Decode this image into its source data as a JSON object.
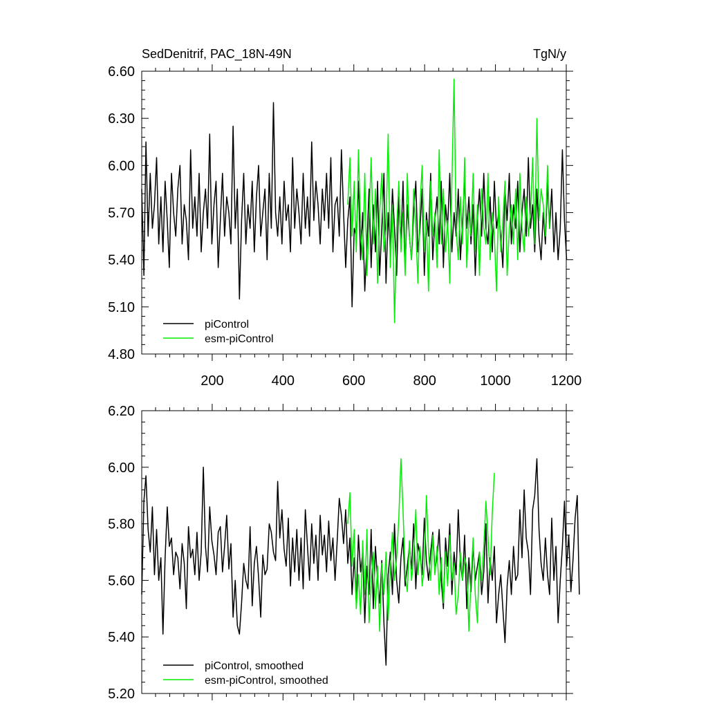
{
  "figure": {
    "title_left": "SedDenitrif, PAC_18N-49N",
    "title_right": "TgN/y"
  },
  "colors": {
    "piControl": "#000000",
    "esm_piControl": "#00ee00",
    "axis": "#000000",
    "background": "#ffffff"
  },
  "chart_data": [
    {
      "type": "line",
      "panel": "top",
      "xlim": [
        1,
        1200
      ],
      "ylim": [
        4.8,
        6.6
      ],
      "xticks": [
        200,
        400,
        600,
        800,
        1000,
        1200
      ],
      "xtick_labels": [
        "200",
        "400",
        "600",
        "800",
        "1000",
        "1200"
      ],
      "yticks": [
        4.8,
        5.1,
        5.4,
        5.7,
        6.0,
        6.3,
        6.6
      ],
      "ytick_labels": [
        "4.80",
        "5.10",
        "5.40",
        "5.70",
        "6.00",
        "6.30",
        "6.60"
      ],
      "legend_position": "bottom-left",
      "legend": [
        "piControl",
        "esm-piControl"
      ],
      "series": [
        {
          "name": "piControl",
          "color": "#000000",
          "x_start": 1,
          "x_step": 6,
          "values": [
            5.85,
            5.3,
            6.15,
            5.55,
            5.95,
            5.6,
            5.75,
            6.05,
            5.5,
            5.8,
            5.45,
            5.9,
            5.65,
            5.35,
            5.95,
            5.7,
            5.55,
            5.85,
            6.0,
            5.5,
            5.75,
            5.65,
            5.4,
            6.1,
            5.6,
            5.8,
            5.55,
            5.95,
            5.45,
            5.7,
            5.85,
            5.6,
            6.2,
            5.5,
            5.75,
            5.9,
            5.35,
            5.65,
            5.95,
            5.55,
            5.8,
            5.7,
            5.5,
            6.25,
            5.6,
            5.85,
            5.15,
            5.65,
            5.95,
            5.5,
            5.75,
            5.6,
            5.9,
            5.45,
            5.8,
            6.0,
            5.55,
            5.7,
            5.85,
            5.4,
            5.95,
            5.6,
            6.4,
            5.7,
            5.55,
            5.8,
            5.5,
            5.9,
            5.65,
            5.75,
            5.45,
            6.05,
            5.6,
            5.85,
            5.7,
            5.5,
            5.95,
            5.6,
            5.8,
            5.55,
            6.15,
            5.65,
            5.9,
            5.75,
            5.5,
            5.85,
            5.65,
            5.95,
            5.6,
            6.05,
            5.45,
            5.75,
            5.8,
            5.55,
            6.1,
            5.7,
            5.35,
            5.65,
            5.8,
            5.1,
            5.6,
            5.55,
            5.9,
            5.4,
            5.7,
            5.2,
            5.5,
            5.85,
            5.35,
            5.75,
            5.45,
            5.9,
            5.3,
            5.6,
            5.95,
            5.25,
            5.7,
            5.45,
            5.85,
            5.6,
            5.3,
            5.8,
            5.5,
            5.9,
            5.35,
            5.75,
            5.55,
            5.4,
            5.7,
            5.9,
            5.45,
            5.6,
            5.85,
            5.3,
            5.7,
            5.55,
            5.95,
            5.4,
            5.65,
            5.8,
            5.5,
            5.9,
            5.35,
            5.75,
            5.6,
            5.95,
            5.45,
            5.7,
            5.55,
            5.85,
            5.4,
            5.65,
            5.9,
            5.6,
            5.8,
            5.5,
            5.75,
            5.3,
            5.65,
            5.85,
            5.55,
            5.95,
            5.6,
            5.5,
            5.8,
            5.45,
            5.9,
            5.6,
            5.7,
            5.55,
            5.35,
            5.85,
            5.65,
            5.95,
            5.5,
            5.75,
            5.6,
            5.9,
            5.45,
            5.7,
            5.85,
            5.55,
            6.05,
            5.6,
            5.75,
            5.45,
            5.85,
            5.55,
            5.4,
            5.7,
            5.5,
            5.9,
            5.6,
            5.85,
            5.45,
            5.7,
            5.4,
            5.6,
            6.1,
            5.65,
            5.4
          ]
        },
        {
          "name": "esm-piControl",
          "color": "#00ee00",
          "x_start": 583,
          "x_step": 6,
          "values": [
            5.75,
            6.05,
            5.55,
            5.9,
            5.45,
            6.1,
            5.6,
            5.4,
            5.95,
            5.3,
            5.65,
            6.05,
            5.5,
            5.85,
            5.25,
            5.7,
            5.95,
            5.45,
            5.6,
            6.2,
            5.35,
            5.75,
            5.0,
            5.6,
            5.9,
            5.45,
            5.7,
            5.3,
            5.95,
            5.55,
            5.4,
            5.85,
            5.6,
            5.25,
            5.75,
            6.0,
            5.45,
            5.65,
            5.2,
            5.9,
            5.55,
            5.7,
            5.35,
            6.1,
            5.5,
            5.85,
            5.45,
            5.65,
            5.25,
            5.9,
            6.55,
            5.6,
            5.4,
            5.8,
            5.5,
            6.05,
            5.35,
            5.7,
            5.55,
            5.95,
            5.45,
            5.75,
            5.3,
            5.85,
            5.6,
            5.5,
            5.95,
            5.4,
            5.7,
            5.55,
            5.2,
            5.8,
            5.45,
            5.65,
            5.9,
            5.3,
            5.6,
            5.75,
            5.5,
            5.85,
            5.4,
            5.95,
            5.6,
            5.45,
            5.8,
            5.55,
            5.7,
            6.05,
            5.5,
            6.3,
            5.65,
            5.85,
            5.75,
            5.55,
            6.0,
            5.6
          ]
        }
      ]
    },
    {
      "type": "line",
      "panel": "bottom",
      "xlim": [
        1,
        1200
      ],
      "ylim": [
        5.2,
        6.2
      ],
      "xticks": [
        200,
        400,
        600,
        800,
        1000,
        1200
      ],
      "yticks": [
        5.2,
        5.4,
        5.6,
        5.8,
        6.0,
        6.2
      ],
      "ytick_labels": [
        "5.20",
        "5.40",
        "5.60",
        "5.80",
        "6.00",
        "6.20"
      ],
      "legend_position": "bottom-left",
      "legend": [
        "piControl, smoothed",
        "esm-piControl, smoothed"
      ],
      "series": [
        {
          "name": "piControl, smoothed",
          "color": "#000000",
          "x_start": 1,
          "x_step": 6,
          "values": [
            5.55,
            5.88,
            5.97,
            5.78,
            5.7,
            5.86,
            5.62,
            5.78,
            5.6,
            5.68,
            5.41,
            5.68,
            5.86,
            5.72,
            5.75,
            5.62,
            5.7,
            5.68,
            5.57,
            5.73,
            5.66,
            5.5,
            5.79,
            5.68,
            5.71,
            5.62,
            5.77,
            5.6,
            5.7,
            6.0,
            5.72,
            5.63,
            5.86,
            5.74,
            5.69,
            5.62,
            5.77,
            5.79,
            5.63,
            5.72,
            5.83,
            5.64,
            5.73,
            5.47,
            5.6,
            5.44,
            5.41,
            5.52,
            5.66,
            5.6,
            5.57,
            5.79,
            5.51,
            5.66,
            5.72,
            5.61,
            5.47,
            5.69,
            5.62,
            5.64,
            5.8,
            5.77,
            5.7,
            5.67,
            5.95,
            5.75,
            5.85,
            5.71,
            5.65,
            5.82,
            5.58,
            5.75,
            5.63,
            5.78,
            5.6,
            5.75,
            5.57,
            5.85,
            5.72,
            5.6,
            5.8,
            5.66,
            5.76,
            5.6,
            5.83,
            5.69,
            5.76,
            5.63,
            5.81,
            5.67,
            5.75,
            5.6,
            5.74,
            5.89,
            5.83,
            5.73,
            5.85,
            5.66,
            5.75,
            5.55,
            5.68,
            5.52,
            5.76,
            5.63,
            5.7,
            5.45,
            5.65,
            5.55,
            5.78,
            5.5,
            5.72,
            5.6,
            5.52,
            5.67,
            5.45,
            5.3,
            5.62,
            5.7,
            5.55,
            5.8,
            5.6,
            5.52,
            5.68,
            5.75,
            5.58,
            5.65,
            5.72,
            5.64,
            5.8,
            5.57,
            5.73,
            5.69,
            5.62,
            5.82,
            5.67,
            5.6,
            5.7,
            5.77,
            5.64,
            5.68,
            5.78,
            5.6,
            5.5,
            5.75,
            5.65,
            5.8,
            5.55,
            5.7,
            5.62,
            5.85,
            5.66,
            5.6,
            5.76,
            5.5,
            5.68,
            5.56,
            5.72,
            5.6,
            5.65,
            5.7,
            5.55,
            5.63,
            5.8,
            5.52,
            5.68,
            5.6,
            5.72,
            5.45,
            5.55,
            5.62,
            5.5,
            5.38,
            5.58,
            5.67,
            5.55,
            5.72,
            5.6,
            5.62,
            5.85,
            5.68,
            5.92,
            5.75,
            5.7,
            5.55,
            5.85,
            5.9,
            6.03,
            5.78,
            5.66,
            5.6,
            5.75,
            5.62,
            5.55,
            5.82,
            5.6,
            5.72,
            5.45,
            5.6,
            5.72,
            5.88,
            5.65,
            5.76,
            5.56,
            5.67,
            5.82,
            5.9,
            5.55
          ]
        },
        {
          "name": "esm-piControl, smoothed",
          "color": "#00ee00",
          "x_start": 583,
          "x_step": 6,
          "values": [
            5.8,
            5.91,
            5.65,
            5.78,
            5.5,
            5.62,
            5.48,
            5.74,
            5.55,
            5.78,
            5.45,
            5.6,
            5.7,
            5.5,
            5.65,
            5.42,
            5.66,
            5.55,
            5.7,
            5.46,
            5.64,
            5.77,
            5.6,
            5.68,
            5.82,
            6.03,
            5.85,
            5.62,
            5.56,
            5.74,
            5.6,
            5.68,
            5.85,
            5.62,
            5.72,
            5.58,
            5.65,
            5.9,
            5.7,
            5.6,
            5.76,
            5.62,
            5.72,
            5.55,
            5.68,
            5.52,
            5.7,
            5.58,
            5.76,
            5.6,
            5.66,
            5.48,
            5.55,
            5.7,
            5.6,
            5.68,
            5.65,
            5.42,
            5.6,
            5.75,
            5.55,
            5.45,
            5.7,
            5.6,
            5.72,
            5.88,
            5.75,
            5.62,
            5.84,
            5.98
          ]
        }
      ]
    }
  ]
}
